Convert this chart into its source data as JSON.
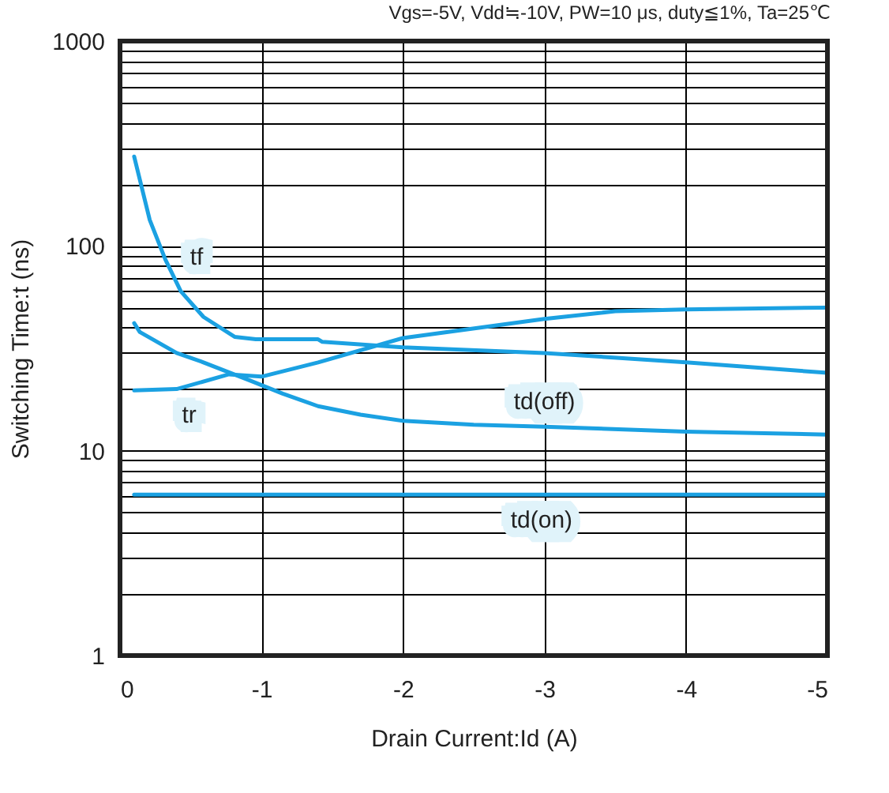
{
  "chart_data": {
    "type": "line",
    "title": "Vgs=-5V, Vdd≒-10V, PW=10 μs, duty≦1%, Ta=25℃",
    "xlabel": "Drain Current:Id  (A)",
    "ylabel": "Switching Time:t  (ns)",
    "log": "y",
    "grid": true,
    "marker": "none",
    "line_style": "solid",
    "xlim": [
      0,
      -5
    ],
    "xticks": [
      0,
      -1,
      -2,
      -3,
      -4,
      -5
    ],
    "ylim": [
      1,
      1000
    ],
    "yticks": [
      1,
      {
        "value": 2,
        "label": null
      },
      {
        "value": 3,
        "label": null
      },
      {
        "value": 4,
        "label": null
      },
      {
        "value": 5,
        "label": null
      },
      {
        "value": 6,
        "label": null
      },
      {
        "value": 7,
        "label": null
      },
      {
        "value": 8,
        "label": null
      },
      {
        "value": 9,
        "label": null
      },
      10,
      {
        "value": 20,
        "label": null
      },
      {
        "value": 30,
        "label": null
      },
      {
        "value": 40,
        "label": null
      },
      {
        "value": 50,
        "label": null
      },
      {
        "value": 60,
        "label": null
      },
      {
        "value": 70,
        "label": null
      },
      {
        "value": 80,
        "label": null
      },
      {
        "value": 90,
        "label": null
      },
      100,
      {
        "value": 200,
        "label": null
      },
      {
        "value": 300,
        "label": null
      },
      {
        "value": 400,
        "label": null
      },
      {
        "value": 500,
        "label": null
      },
      {
        "value": 600,
        "label": null
      },
      {
        "value": 700,
        "label": null
      },
      {
        "value": 800,
        "label": null
      },
      {
        "value": 900,
        "label": null
      },
      1000
    ],
    "series": [
      {
        "name": "tf",
        "color": "#1ba1e2",
        "x": [
          -0.1,
          -0.21,
          -0.32,
          -0.43,
          -0.59,
          -0.81,
          -0.96,
          -1.4,
          -1.43,
          -2.0,
          -3.0,
          -4.0,
          -5.0
        ],
        "values": [
          273,
          134,
          86,
          60,
          45,
          36,
          35,
          35,
          34,
          32,
          30,
          27,
          24
        ]
      },
      {
        "name": "tr",
        "color": "#1ba1e2",
        "x": [
          -0.1,
          -0.4,
          -0.77,
          -1.0,
          -1.4,
          -2.0,
          -3.0,
          -3.5,
          -4.0,
          -5.0
        ],
        "values": [
          19.7,
          20,
          23.6,
          23,
          27,
          35.5,
          44,
          48,
          49,
          50
        ]
      },
      {
        "name": "td(off)",
        "color": "#1ba1e2",
        "x": [
          -0.1,
          -0.14,
          -0.4,
          -0.59,
          -0.92,
          -1.15,
          -1.4,
          -1.7,
          -2.0,
          -2.5,
          -3.0,
          -4.0,
          -5.0
        ],
        "values": [
          42,
          38,
          30,
          27,
          22,
          19,
          16.5,
          15,
          14,
          13.4,
          13.1,
          12.4,
          12
        ]
      },
      {
        "name": "td(on)",
        "color": "#1ba1e2",
        "x": [
          -0.1,
          -5.0
        ],
        "values": [
          6.1,
          6.1
        ]
      }
    ]
  }
}
